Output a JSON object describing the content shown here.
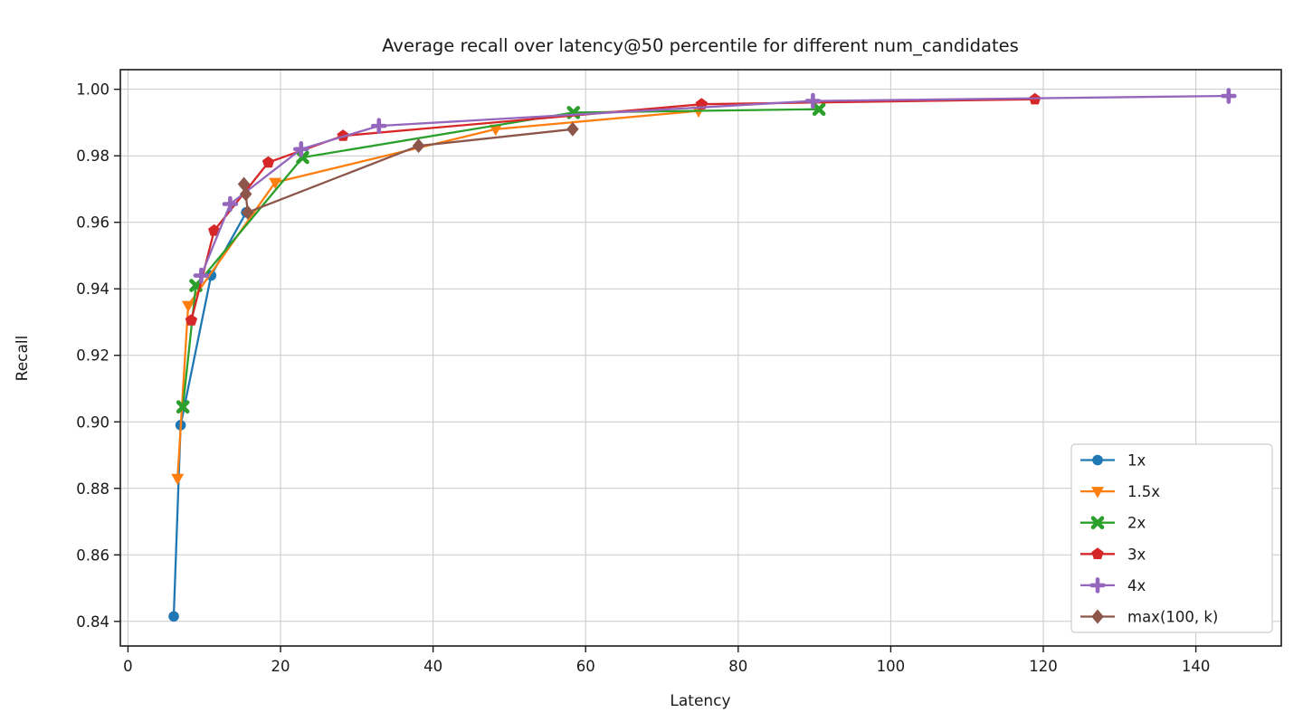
{
  "chart_data": {
    "type": "line",
    "title": "Average recall over latency@50 percentile for different num_candidates",
    "xlabel": "Latency",
    "ylabel": "Recall",
    "xlim": [
      -1.0,
      151.2
    ],
    "ylim": [
      0.8326,
      1.0059
    ],
    "x_ticks": [
      0,
      20,
      40,
      60,
      80,
      100,
      120,
      140
    ],
    "x_tick_labels": [
      "0",
      "20",
      "40",
      "60",
      "80",
      "100",
      "120",
      "140"
    ],
    "y_ticks": [
      0.84,
      0.86,
      0.88,
      0.9,
      0.92,
      0.94,
      0.96,
      0.98,
      1.0
    ],
    "y_tick_labels": [
      "0.84",
      "0.86",
      "0.88",
      "0.90",
      "0.92",
      "0.94",
      "0.96",
      "0.98",
      "1.00"
    ],
    "grid": true,
    "legend_position": "lower right",
    "series": [
      {
        "name": "1x",
        "color": "#1f77b4",
        "marker": "circle",
        "points": [
          [
            6.0,
            0.8415
          ],
          [
            6.9,
            0.899
          ],
          [
            10.9,
            0.944
          ],
          [
            15.5,
            0.963
          ]
        ]
      },
      {
        "name": "1.5x",
        "color": "#ff7f0e",
        "marker": "triangle-down",
        "points": [
          [
            6.5,
            0.883
          ],
          [
            7.9,
            0.935
          ],
          [
            19.3,
            0.972
          ],
          [
            48.2,
            0.988
          ],
          [
            74.8,
            0.9935
          ]
        ]
      },
      {
        "name": "2x",
        "color": "#2ca02c",
        "marker": "x",
        "points": [
          [
            7.2,
            0.9045
          ],
          [
            8.9,
            0.941
          ],
          [
            22.9,
            0.9795
          ],
          [
            58.4,
            0.993
          ],
          [
            90.6,
            0.994
          ]
        ]
      },
      {
        "name": "3x",
        "color": "#d62728",
        "marker": "pentagon",
        "points": [
          [
            8.3,
            0.9305
          ],
          [
            11.3,
            0.9575
          ],
          [
            18.4,
            0.978
          ],
          [
            28.2,
            0.986
          ],
          [
            75.2,
            0.9955
          ],
          [
            118.9,
            0.997
          ]
        ]
      },
      {
        "name": "4x",
        "color": "#9467bd",
        "marker": "plus",
        "points": [
          [
            9.6,
            0.944
          ],
          [
            13.4,
            0.9655
          ],
          [
            22.7,
            0.982
          ],
          [
            32.9,
            0.989
          ],
          [
            89.8,
            0.9965
          ],
          [
            144.3,
            0.998
          ]
        ]
      },
      {
        "name": "max(100, k)",
        "color": "#8c564b",
        "marker": "diamond",
        "points": [
          [
            15.2,
            0.9715
          ],
          [
            15.45,
            0.9685
          ],
          [
            15.7,
            0.963
          ],
          [
            38.1,
            0.983
          ],
          [
            58.3,
            0.988
          ]
        ]
      }
    ]
  }
}
